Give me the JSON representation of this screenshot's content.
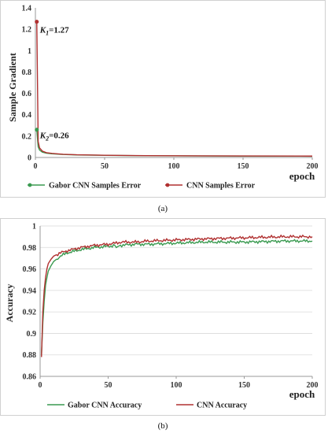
{
  "chart_data": [
    {
      "type": "line",
      "caption": "(a)",
      "xlabel": "epoch",
      "ylabel": "Sample Gradient",
      "xlim": [
        0,
        200
      ],
      "ylim": [
        0,
        1.4
      ],
      "x_ticks": [
        "0",
        "50",
        "100",
        "150",
        "200"
      ],
      "y_ticks": [
        "0",
        "0.2",
        "0.4",
        "0.6",
        "0.8",
        "1",
        "1.2",
        "1.4"
      ],
      "grid": false,
      "legend_position": "bottom",
      "series": [
        {
          "name": "Gabor CNN Samples Error",
          "color": "#3a9a50",
          "x": [
            1,
            2,
            3,
            5,
            8,
            12,
            20,
            30,
            50,
            80,
            100,
            150,
            200
          ],
          "y": [
            0.26,
            0.1,
            0.07,
            0.05,
            0.04,
            0.035,
            0.028,
            0.024,
            0.02,
            0.016,
            0.015,
            0.013,
            0.012
          ]
        },
        {
          "name": "CNN Samples Error",
          "color": "#b03030",
          "x": [
            1,
            2,
            3,
            5,
            8,
            12,
            20,
            30,
            50,
            80,
            100,
            150,
            200
          ],
          "y": [
            1.27,
            0.15,
            0.09,
            0.06,
            0.045,
            0.038,
            0.03,
            0.025,
            0.021,
            0.017,
            0.016,
            0.014,
            0.013
          ]
        }
      ],
      "annotations": [
        {
          "label": "K",
          "subscript": "1",
          "value_text": "=1.27",
          "x": 1,
          "y": 1.27
        },
        {
          "label": "K",
          "subscript": "2",
          "value_text": "=0.26",
          "x": 1,
          "y": 0.26
        }
      ]
    },
    {
      "type": "line",
      "caption": "(b)",
      "xlabel": "epoch",
      "ylabel": "Accuracy",
      "xlim": [
        0,
        200
      ],
      "ylim": [
        0.86,
        1
      ],
      "x_ticks": [
        "0",
        "50",
        "100",
        "150",
        "200"
      ],
      "y_ticks": [
        "0.86",
        "0.88",
        "0.9",
        "0.92",
        "0.94",
        "0.96",
        "0.98",
        "1"
      ],
      "grid": true,
      "legend_position": "bottom",
      "series": [
        {
          "name": "Gabor CNN Accuracy",
          "color": "#3a9a50",
          "x": [
            1,
            2,
            3,
            4,
            5,
            6,
            8,
            10,
            15,
            20,
            30,
            40,
            50,
            55,
            56,
            58,
            60,
            70,
            80,
            100,
            120,
            150,
            180,
            200
          ],
          "y": [
            0.88,
            0.91,
            0.93,
            0.945,
            0.952,
            0.958,
            0.963,
            0.967,
            0.972,
            0.975,
            0.978,
            0.98,
            0.981,
            0.982,
            0.979,
            0.982,
            0.982,
            0.983,
            0.983,
            0.984,
            0.985,
            0.985,
            0.986,
            0.986
          ]
        },
        {
          "name": "CNN Accuracy",
          "color": "#b03030",
          "x": [
            1,
            2,
            3,
            4,
            5,
            6,
            8,
            10,
            15,
            20,
            30,
            40,
            50,
            60,
            70,
            80,
            100,
            120,
            150,
            180,
            200
          ],
          "y": [
            0.878,
            0.92,
            0.94,
            0.952,
            0.96,
            0.965,
            0.969,
            0.972,
            0.975,
            0.977,
            0.98,
            0.982,
            0.983,
            0.985,
            0.985,
            0.986,
            0.987,
            0.988,
            0.989,
            0.99,
            0.99
          ]
        }
      ]
    }
  ]
}
